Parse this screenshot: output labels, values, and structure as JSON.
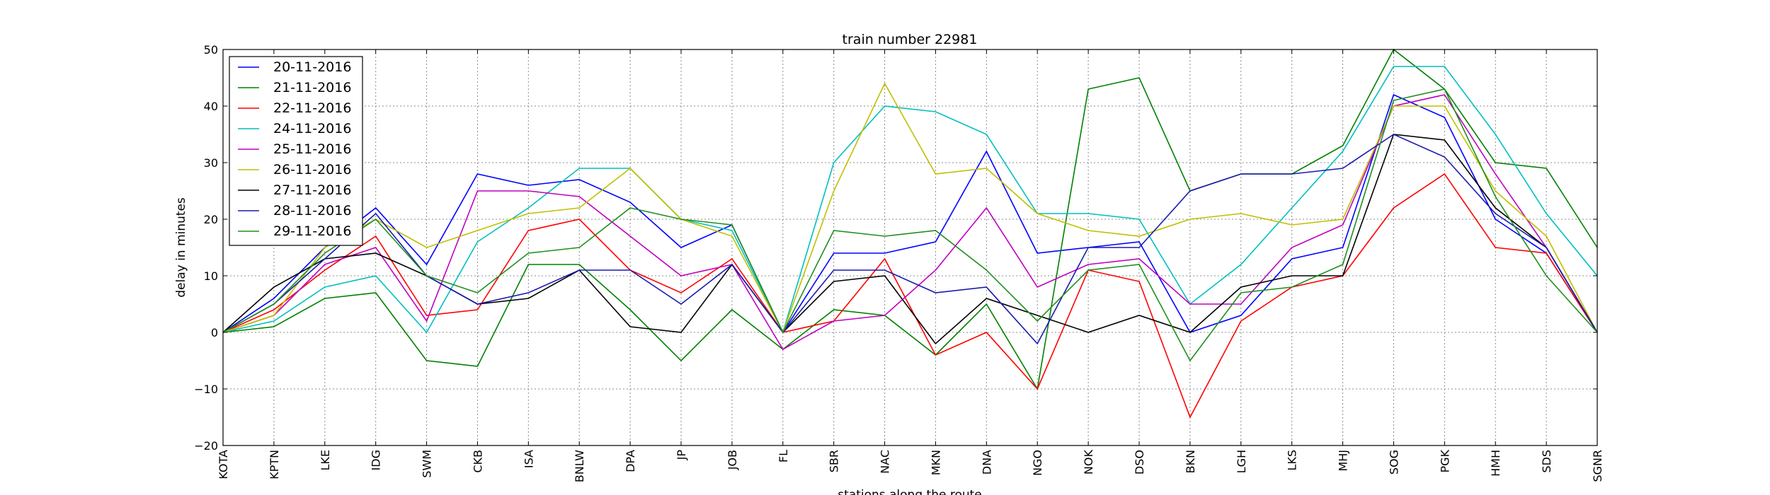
{
  "chart_data": {
    "type": "line",
    "title": "train number 22981",
    "xlabel": "stations along the route",
    "ylabel": "delay in minutes",
    "categories": [
      "KOTA",
      "KPTN",
      "LKE",
      "IDG",
      "SWM",
      "CKB",
      "ISA",
      "BNLW",
      "DPA",
      "JP",
      "JOB",
      "FL",
      "SBR",
      "NAC",
      "MKN",
      "DNA",
      "NGO",
      "NOK",
      "DSO",
      "BKN",
      "LGH",
      "LKS",
      "MHJ",
      "SOG",
      "PGK",
      "HMH",
      "SDS",
      "SGNR"
    ],
    "ylim": [
      -20,
      50
    ],
    "yticks": [
      -20,
      -10,
      0,
      10,
      20,
      30,
      40,
      50
    ],
    "grid": true,
    "legend_position": "top-left",
    "series": [
      {
        "name": "20-11-2016",
        "color": "#0000ff",
        "values": [
          0,
          6,
          15,
          22,
          12,
          28,
          26,
          27,
          23,
          15,
          19,
          0,
          14,
          14,
          16,
          32,
          14,
          15,
          16,
          0,
          3,
          13,
          15,
          42,
          38,
          20,
          14,
          0
        ]
      },
      {
        "name": "21-11-2016",
        "color": "#008000",
        "values": [
          0,
          1,
          6,
          7,
          -5,
          -6,
          12,
          12,
          4,
          -5,
          4,
          -3,
          4,
          3,
          -4,
          5,
          -10,
          43,
          45,
          25,
          28,
          28,
          33,
          50,
          43,
          30,
          29,
          15
        ]
      },
      {
        "name": "22-11-2016",
        "color": "#ff0000",
        "values": [
          0,
          4,
          11,
          17,
          3,
          4,
          18,
          20,
          11,
          7,
          13,
          0,
          2,
          13,
          -4,
          0,
          -10,
          11,
          9,
          -15,
          2,
          8,
          10,
          22,
          28,
          15,
          14,
          0
        ]
      },
      {
        "name": "24-11-2016",
        "color": "#00bfbf",
        "values": [
          0,
          2,
          8,
          10,
          0,
          16,
          22,
          29,
          29,
          20,
          18,
          0,
          30,
          40,
          39,
          35,
          21,
          21,
          20,
          5,
          12,
          22,
          32,
          47,
          47,
          35,
          21,
          10
        ]
      },
      {
        "name": "25-11-2016",
        "color": "#bf00bf",
        "values": [
          0,
          3,
          12,
          15,
          2,
          25,
          25,
          24,
          17,
          10,
          12,
          -3,
          2,
          3,
          11,
          22,
          8,
          12,
          13,
          5,
          5,
          15,
          19,
          40,
          42,
          28,
          15,
          0
        ]
      },
      {
        "name": "26-11-2016",
        "color": "#bfbf00",
        "values": [
          0,
          3,
          15,
          20,
          15,
          18,
          21,
          22,
          29,
          20,
          17,
          0,
          25,
          44,
          28,
          29,
          21,
          18,
          17,
          20,
          21,
          19,
          20,
          40,
          40,
          25,
          17,
          0
        ]
      },
      {
        "name": "27-11-2016",
        "color": "#000000",
        "values": [
          0,
          8,
          13,
          14,
          10,
          5,
          6,
          11,
          1,
          0,
          12,
          0,
          9,
          10,
          -2,
          6,
          3,
          0,
          3,
          0,
          8,
          10,
          10,
          35,
          34,
          22,
          15,
          0
        ]
      },
      {
        "name": "28-11-2016",
        "color": "#1a1ab0",
        "values": [
          0,
          5,
          13,
          21,
          10,
          5,
          7,
          11,
          11,
          5,
          12,
          0,
          11,
          11,
          7,
          8,
          -2,
          15,
          15,
          25,
          28,
          28,
          29,
          35,
          31,
          21,
          15,
          0
        ]
      },
      {
        "name": "29-11-2016",
        "color": "#1f8f1f",
        "values": [
          0,
          5,
          14,
          20,
          10,
          7,
          14,
          15,
          22,
          20,
          19,
          0,
          18,
          17,
          18,
          11,
          2,
          11,
          12,
          -5,
          7,
          8,
          12,
          41,
          43,
          24,
          10,
          0
        ]
      }
    ]
  }
}
